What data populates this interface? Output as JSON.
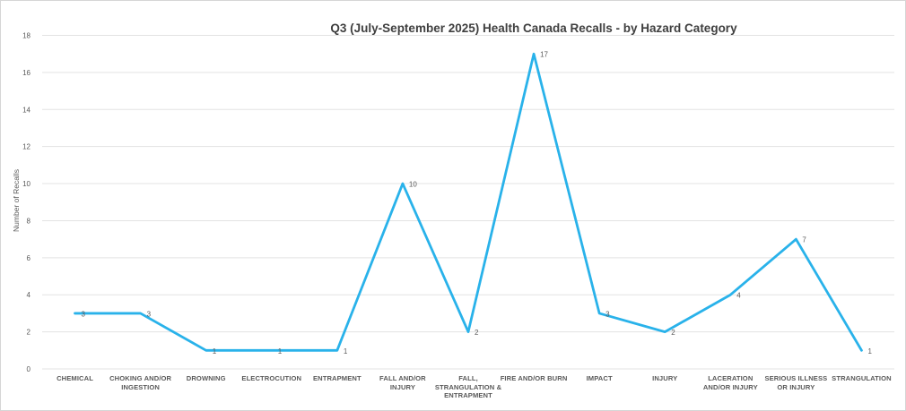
{
  "chart": {
    "title": "Q3 (July-September 2025) Health Canada Recalls - by Hazard Category",
    "ylabel": "Number of Recalls"
  },
  "chart_data": {
    "type": "line",
    "title": "Q3 (July-September 2025) Health Canada Recalls - by Hazard Category",
    "xlabel": "",
    "ylabel": "Number of Recalls",
    "categories": [
      "CHEMICAL",
      "CHOKING AND/OR INGESTION",
      "DROWNING",
      "ELECTROCUTION",
      "ENTRAPMENT",
      "FALL AND/OR INJURY",
      "FALL, STRANGULATION & ENTRAPMENT",
      "FIRE AND/OR BURN",
      "IMPACT",
      "INJURY",
      "LACERATION AND/OR INJURY",
      "SERIOUS ILLNESS OR INJURY",
      "STRANGULATION"
    ],
    "category_lines": [
      [
        "CHEMICAL"
      ],
      [
        "CHOKING AND/OR",
        "INGESTION"
      ],
      [
        "DROWNING"
      ],
      [
        "ELECTROCUTION"
      ],
      [
        "ENTRAPMENT"
      ],
      [
        "FALL AND/OR",
        "INJURY"
      ],
      [
        "FALL,",
        "STRANGULATION &",
        "ENTRAPMENT"
      ],
      [
        "FIRE AND/OR BURN"
      ],
      [
        "IMPACT"
      ],
      [
        "INJURY"
      ],
      [
        "LACERATION",
        "AND/OR INJURY"
      ],
      [
        "SERIOUS ILLNESS",
        "OR INJURY"
      ],
      [
        "STRANGULATION"
      ]
    ],
    "values": [
      3,
      3,
      1,
      1,
      1,
      10,
      2,
      17,
      3,
      2,
      4,
      7,
      1
    ],
    "ylim": [
      0,
      18
    ],
    "y_ticks": [
      0,
      2,
      4,
      6,
      8,
      10,
      12,
      14,
      16,
      18
    ],
    "grid": true,
    "legend": false,
    "data_labels": true,
    "line_color": "#29b2ea",
    "grid_color": "#e3e3e3",
    "label_color": "#595959"
  }
}
